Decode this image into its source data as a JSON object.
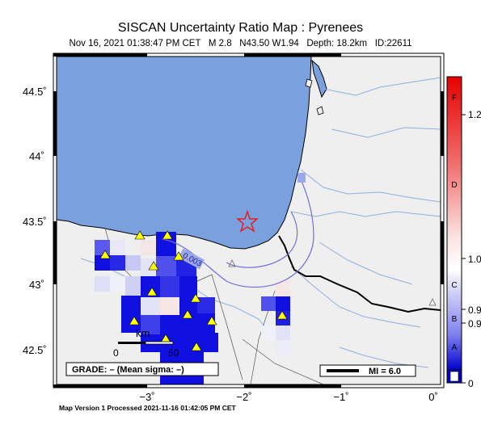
{
  "header": {
    "title": "SISCAN Uncertainty Ratio Map : Pyrenees",
    "subtitle": "Nov 16, 2021 01:38:47 PM CET   M 2.8   N43.50 W1.94   Depth: 18.2km   ID:22611"
  },
  "axes": {
    "y_ticks": [
      "44.5˚",
      "44˚",
      "43.5˚",
      "43˚",
      "42.5˚"
    ],
    "x_ticks": [
      "−3˚",
      "−2˚",
      "−1˚",
      "0˚"
    ]
  },
  "colorbar": {
    "letters": [
      "F",
      "D",
      "C",
      "B",
      "A"
    ],
    "values": [
      "1.2",
      "1.0",
      "0.9",
      "0.9",
      "0"
    ],
    "top_color": "#e60000",
    "bottom_color": "#0000cc"
  },
  "map": {
    "contour_label": "0.003",
    "scale_label": "km",
    "scale_zero": "0",
    "scale_fifty": "50",
    "grade_text": "GRADE: – (Mean sigma: –)",
    "mi_text": "MI = 6.0",
    "sea_color": "#7aa0de",
    "land_color": "#efefef",
    "epicenter_color": "#e02020",
    "station_color": "#ffff00"
  },
  "footer": {
    "text": "Map Version 1 Processed 2021-11-16 01:42:05 PM CET"
  }
}
